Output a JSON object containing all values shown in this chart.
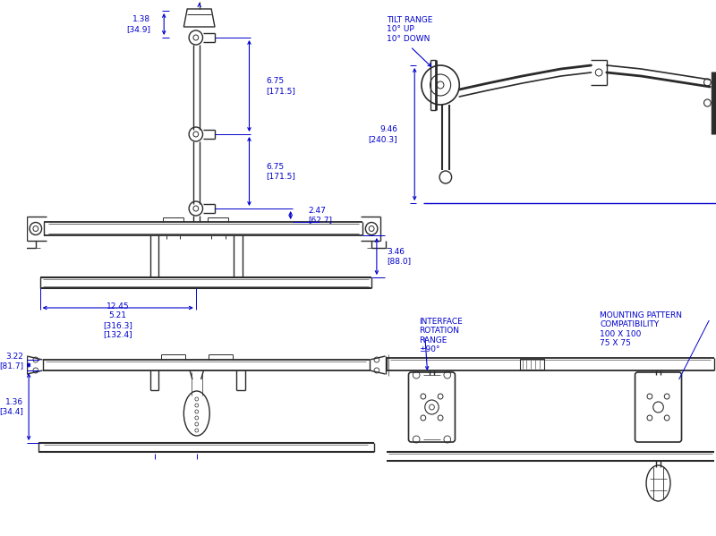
{
  "bg_color": "#ffffff",
  "line_color": "#2a2a2a",
  "dim_color": "#0000cc",
  "annotations": {
    "tilt_range": "TILT RANGE\n10° UP\n10° DOWN",
    "interface_rotation": "INTERFACE\nROTATION\nRANGE\n±90°",
    "mounting_pattern": "MOUNTING PATTERN\nCOMPATIBILITY\n100 X 100\n75 X 75"
  },
  "dimensions": {
    "d1_38": "1.38\n[34.9]",
    "d6_75a": "6.75\n[171.5]",
    "d6_75b": "6.75\n[171.5]",
    "d2_47": "2.47\n[62.7]",
    "d9_46": "9.46\n[240.3]",
    "d3_46": "3.46\n[88.0]",
    "d12_45": "12.45\n5.21\n[316.3]\n[132.4]",
    "d3_22": "3.22\n[81.7]",
    "d1_36": "1.36\n[34.4]"
  }
}
